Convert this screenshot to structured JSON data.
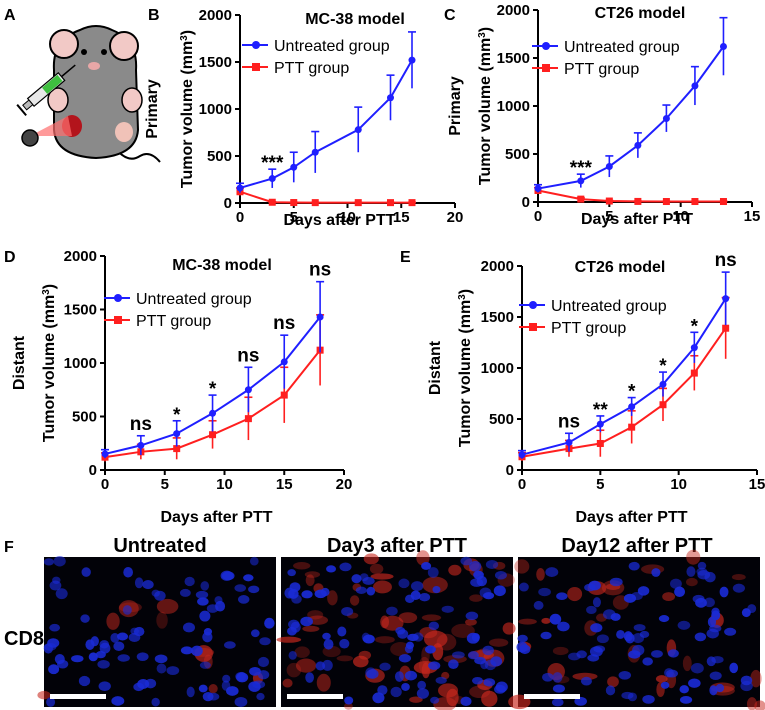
{
  "panel_letters": [
    "A",
    "B",
    "C",
    "D",
    "E",
    "F"
  ],
  "colors": {
    "untreated": "#1f1fff",
    "ptt": "#ff1f1f",
    "nucleus": "#1a2bd6",
    "cd8": "#c8281e"
  },
  "chart_data": [
    {
      "id": "B",
      "type": "line",
      "title": "MC-38 model",
      "row_label": "Primary",
      "ylabel": "Tumor volume (mm",
      "ylabel_sup": "3",
      "ylabel_end": ")",
      "xlabel": "Days after PTT",
      "xlim": [
        0,
        20
      ],
      "ylim": [
        0,
        2000
      ],
      "xticks": [
        0,
        5,
        10,
        15,
        20
      ],
      "yticks": [
        0,
        500,
        1000,
        1500,
        2000
      ],
      "series": [
        {
          "name": "Untreated group",
          "color_key": "untreated",
          "marker": "circle",
          "x": [
            0,
            3,
            5,
            7,
            11,
            14,
            16
          ],
          "y": [
            160,
            260,
            380,
            540,
            780,
            1120,
            1520
          ],
          "err": [
            50,
            100,
            160,
            220,
            240,
            240,
            300
          ]
        },
        {
          "name": "PTT group",
          "color_key": "ptt",
          "marker": "square",
          "x": [
            0,
            3,
            5,
            7,
            11,
            14,
            16
          ],
          "y": [
            120,
            8,
            5,
            4,
            4,
            4,
            4
          ],
          "err": [
            40,
            5,
            3,
            3,
            3,
            3,
            3
          ]
        }
      ],
      "annotations": [
        {
          "x": 3,
          "y": 260,
          "err": 100,
          "text": "***"
        }
      ]
    },
    {
      "id": "C",
      "type": "line",
      "title": "CT26 model",
      "row_label": "Primary",
      "ylabel": "Tumor volume (mm",
      "ylabel_sup": "3",
      "ylabel_end": ")",
      "xlabel": "Days after PTT",
      "xlim": [
        0,
        15
      ],
      "ylim": [
        0,
        2000
      ],
      "xticks": [
        0,
        5,
        10,
        15
      ],
      "yticks": [
        0,
        500,
        1000,
        1500,
        2000
      ],
      "series": [
        {
          "name": "Untreated group",
          "color_key": "untreated",
          "marker": "circle",
          "x": [
            0,
            3,
            5,
            7,
            9,
            11,
            13
          ],
          "y": [
            140,
            220,
            370,
            590,
            870,
            1210,
            1620
          ],
          "err": [
            40,
            70,
            110,
            130,
            140,
            200,
            300
          ]
        },
        {
          "name": "PTT group",
          "color_key": "ptt",
          "marker": "square",
          "x": [
            0,
            3,
            5,
            7,
            9,
            11,
            13
          ],
          "y": [
            120,
            30,
            10,
            6,
            5,
            5,
            5
          ],
          "err": [
            30,
            15,
            5,
            3,
            3,
            3,
            3
          ]
        }
      ],
      "annotations": [
        {
          "x": 3,
          "y": 220,
          "err": 70,
          "text": "***"
        }
      ]
    },
    {
      "id": "D",
      "type": "line",
      "title": "MC-38 model",
      "row_label": "Distant",
      "ylabel": "Tumor volume (mm",
      "ylabel_sup": "3",
      "ylabel_end": ")",
      "xlabel": "Days after PTT",
      "xlim": [
        0,
        20
      ],
      "ylim": [
        0,
        2000
      ],
      "xticks": [
        0,
        5,
        10,
        15,
        20
      ],
      "yticks": [
        0,
        500,
        1000,
        1500,
        2000
      ],
      "series": [
        {
          "name": "Untreated group",
          "color_key": "untreated",
          "marker": "circle",
          "x": [
            0,
            3,
            6,
            9,
            12,
            15,
            18
          ],
          "y": [
            150,
            230,
            340,
            530,
            750,
            1010,
            1430
          ],
          "err": [
            40,
            90,
            120,
            170,
            210,
            250,
            330
          ]
        },
        {
          "name": "PTT group",
          "color_key": "ptt",
          "marker": "square",
          "x": [
            0,
            3,
            6,
            9,
            12,
            15,
            18
          ],
          "y": [
            120,
            170,
            200,
            330,
            480,
            700,
            1120
          ],
          "err": [
            40,
            70,
            100,
            130,
            200,
            260,
            330
          ]
        }
      ],
      "annotations": [
        {
          "x": 3,
          "y": 230,
          "err": 90,
          "text": "ns"
        },
        {
          "x": 6,
          "y": 340,
          "err": 120,
          "text": "*"
        },
        {
          "x": 9,
          "y": 530,
          "err": 170,
          "text": "*"
        },
        {
          "x": 12,
          "y": 750,
          "err": 210,
          "text": "ns"
        },
        {
          "x": 15,
          "y": 1010,
          "err": 250,
          "text": "ns"
        },
        {
          "x": 18,
          "y": 1430,
          "err": 330,
          "text": "ns"
        }
      ]
    },
    {
      "id": "E",
      "type": "line",
      "title": "CT26 model",
      "row_label": "Distant",
      "ylabel": "Tumor volume (mm",
      "ylabel_sup": "3",
      "ylabel_end": ")",
      "xlabel": "Days after PTT",
      "xlim": [
        0,
        15
      ],
      "ylim": [
        0,
        2000
      ],
      "xticks": [
        0,
        5,
        10,
        15
      ],
      "yticks": [
        0,
        500,
        1000,
        1500,
        2000
      ],
      "series": [
        {
          "name": "Untreated group",
          "color_key": "untreated",
          "marker": "circle",
          "x": [
            0,
            3,
            5,
            7,
            9,
            11,
            13
          ],
          "y": [
            150,
            270,
            450,
            620,
            840,
            1200,
            1680
          ],
          "err": [
            40,
            90,
            80,
            90,
            120,
            150,
            260
          ]
        },
        {
          "name": "PTT group",
          "color_key": "ptt",
          "marker": "square",
          "x": [
            0,
            3,
            5,
            7,
            9,
            11,
            13
          ],
          "y": [
            130,
            210,
            260,
            420,
            640,
            950,
            1390
          ],
          "err": [
            40,
            80,
            130,
            160,
            160,
            170,
            300
          ]
        }
      ],
      "annotations": [
        {
          "x": 3,
          "y": 270,
          "err": 90,
          "text": "ns"
        },
        {
          "x": 5,
          "y": 450,
          "err": 80,
          "text": "**"
        },
        {
          "x": 7,
          "y": 620,
          "err": 90,
          "text": "*"
        },
        {
          "x": 9,
          "y": 840,
          "err": 120,
          "text": "*"
        },
        {
          "x": 11,
          "y": 1200,
          "err": 150,
          "text": "*"
        },
        {
          "x": 13,
          "y": 1680,
          "err": 260,
          "text": "ns"
        }
      ]
    }
  ],
  "micrographs": {
    "row_label": "CD8",
    "titles": [
      "Untreated",
      "Day3 after PTT",
      "Day12 after PTT"
    ],
    "cd8_density": [
      0.15,
      0.95,
      0.5
    ]
  }
}
